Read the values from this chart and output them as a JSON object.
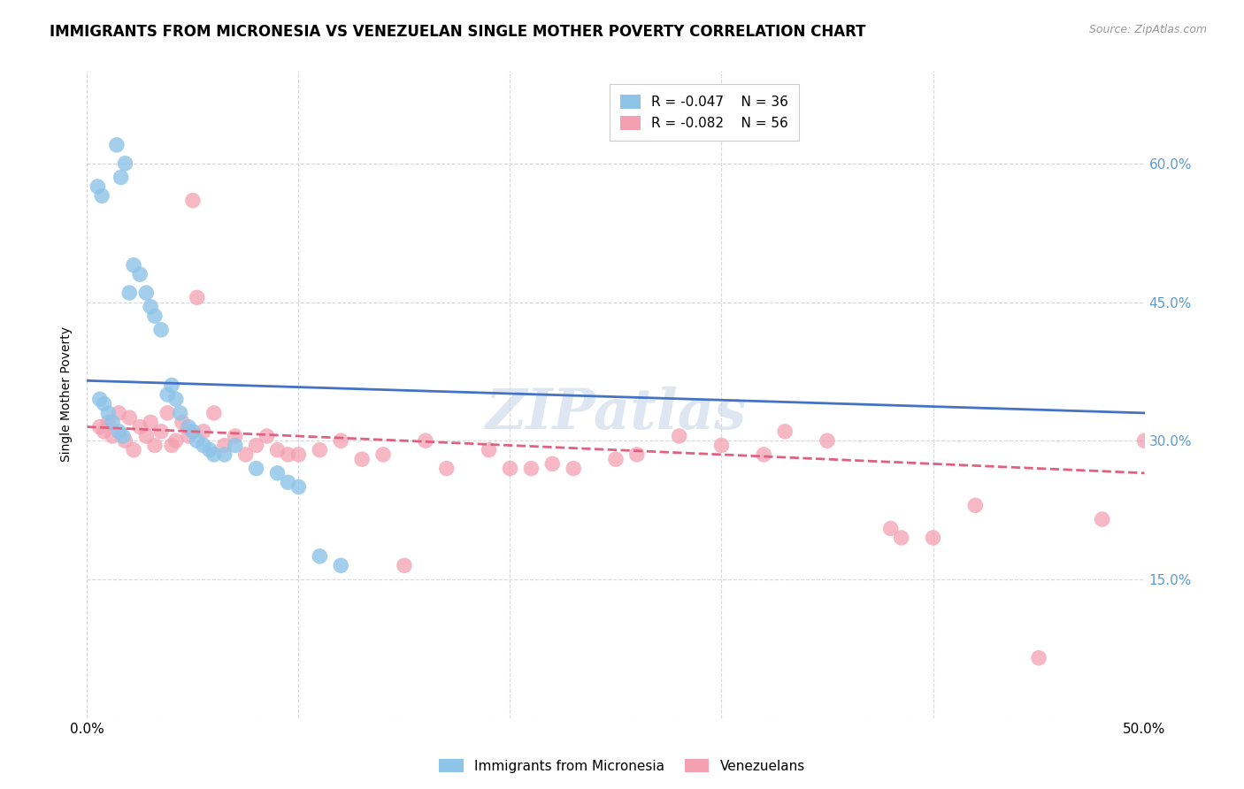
{
  "title": "IMMIGRANTS FROM MICRONESIA VS VENEZUELAN SINGLE MOTHER POVERTY CORRELATION CHART",
  "source": "Source: ZipAtlas.com",
  "ylabel": "Single Mother Poverty",
  "xlim": [
    0.0,
    0.5
  ],
  "ylim": [
    0.0,
    0.7
  ],
  "legend_entries": [
    {
      "label": "R = -0.047    N = 36",
      "color": "#a8c8e8"
    },
    {
      "label": "R = -0.082    N = 56",
      "color": "#f4a8b8"
    }
  ],
  "blue_scatter_x": [
    0.014,
    0.018,
    0.016,
    0.005,
    0.007,
    0.022,
    0.025,
    0.028,
    0.02,
    0.032,
    0.03,
    0.035,
    0.008,
    0.01,
    0.006,
    0.038,
    0.04,
    0.012,
    0.015,
    0.017,
    0.042,
    0.044,
    0.048,
    0.05,
    0.052,
    0.055,
    0.058,
    0.06,
    0.065,
    0.07,
    0.08,
    0.09,
    0.095,
    0.1,
    0.11,
    0.12
  ],
  "blue_scatter_y": [
    0.62,
    0.6,
    0.585,
    0.575,
    0.565,
    0.49,
    0.48,
    0.46,
    0.46,
    0.435,
    0.445,
    0.42,
    0.34,
    0.33,
    0.345,
    0.35,
    0.36,
    0.32,
    0.31,
    0.305,
    0.345,
    0.33,
    0.315,
    0.31,
    0.3,
    0.295,
    0.29,
    0.285,
    0.285,
    0.295,
    0.27,
    0.265,
    0.255,
    0.25,
    0.175,
    0.165
  ],
  "pink_scatter_x": [
    0.006,
    0.008,
    0.01,
    0.012,
    0.015,
    0.018,
    0.02,
    0.022,
    0.025,
    0.028,
    0.03,
    0.032,
    0.035,
    0.038,
    0.04,
    0.042,
    0.045,
    0.048,
    0.05,
    0.052,
    0.055,
    0.06,
    0.065,
    0.07,
    0.075,
    0.08,
    0.085,
    0.09,
    0.095,
    0.1,
    0.11,
    0.12,
    0.13,
    0.14,
    0.15,
    0.16,
    0.17,
    0.19,
    0.2,
    0.21,
    0.22,
    0.23,
    0.25,
    0.26,
    0.28,
    0.3,
    0.32,
    0.33,
    0.35,
    0.38,
    0.4,
    0.42,
    0.45,
    0.48,
    0.5,
    0.385
  ],
  "pink_scatter_y": [
    0.315,
    0.31,
    0.32,
    0.305,
    0.33,
    0.3,
    0.325,
    0.29,
    0.315,
    0.305,
    0.32,
    0.295,
    0.31,
    0.33,
    0.295,
    0.3,
    0.32,
    0.305,
    0.56,
    0.455,
    0.31,
    0.33,
    0.295,
    0.305,
    0.285,
    0.295,
    0.305,
    0.29,
    0.285,
    0.285,
    0.29,
    0.3,
    0.28,
    0.285,
    0.165,
    0.3,
    0.27,
    0.29,
    0.27,
    0.27,
    0.275,
    0.27,
    0.28,
    0.285,
    0.305,
    0.295,
    0.285,
    0.31,
    0.3,
    0.205,
    0.195,
    0.23,
    0.065,
    0.215,
    0.3,
    0.195
  ],
  "blue_line_x": [
    0.0,
    0.5
  ],
  "blue_line_y": [
    0.365,
    0.33
  ],
  "pink_line_x": [
    0.0,
    0.5
  ],
  "pink_line_y": [
    0.315,
    0.265
  ],
  "blue_color": "#8ec4e8",
  "pink_color": "#f4a0b0",
  "blue_line_color": "#4472c4",
  "pink_line_color": "#e06080",
  "watermark": "ZIPatlas",
  "background_color": "#ffffff",
  "grid_color": "#d8d8d8",
  "right_axis_color": "#5b9bd5",
  "title_fontsize": 12,
  "axis_label_fontsize": 10
}
